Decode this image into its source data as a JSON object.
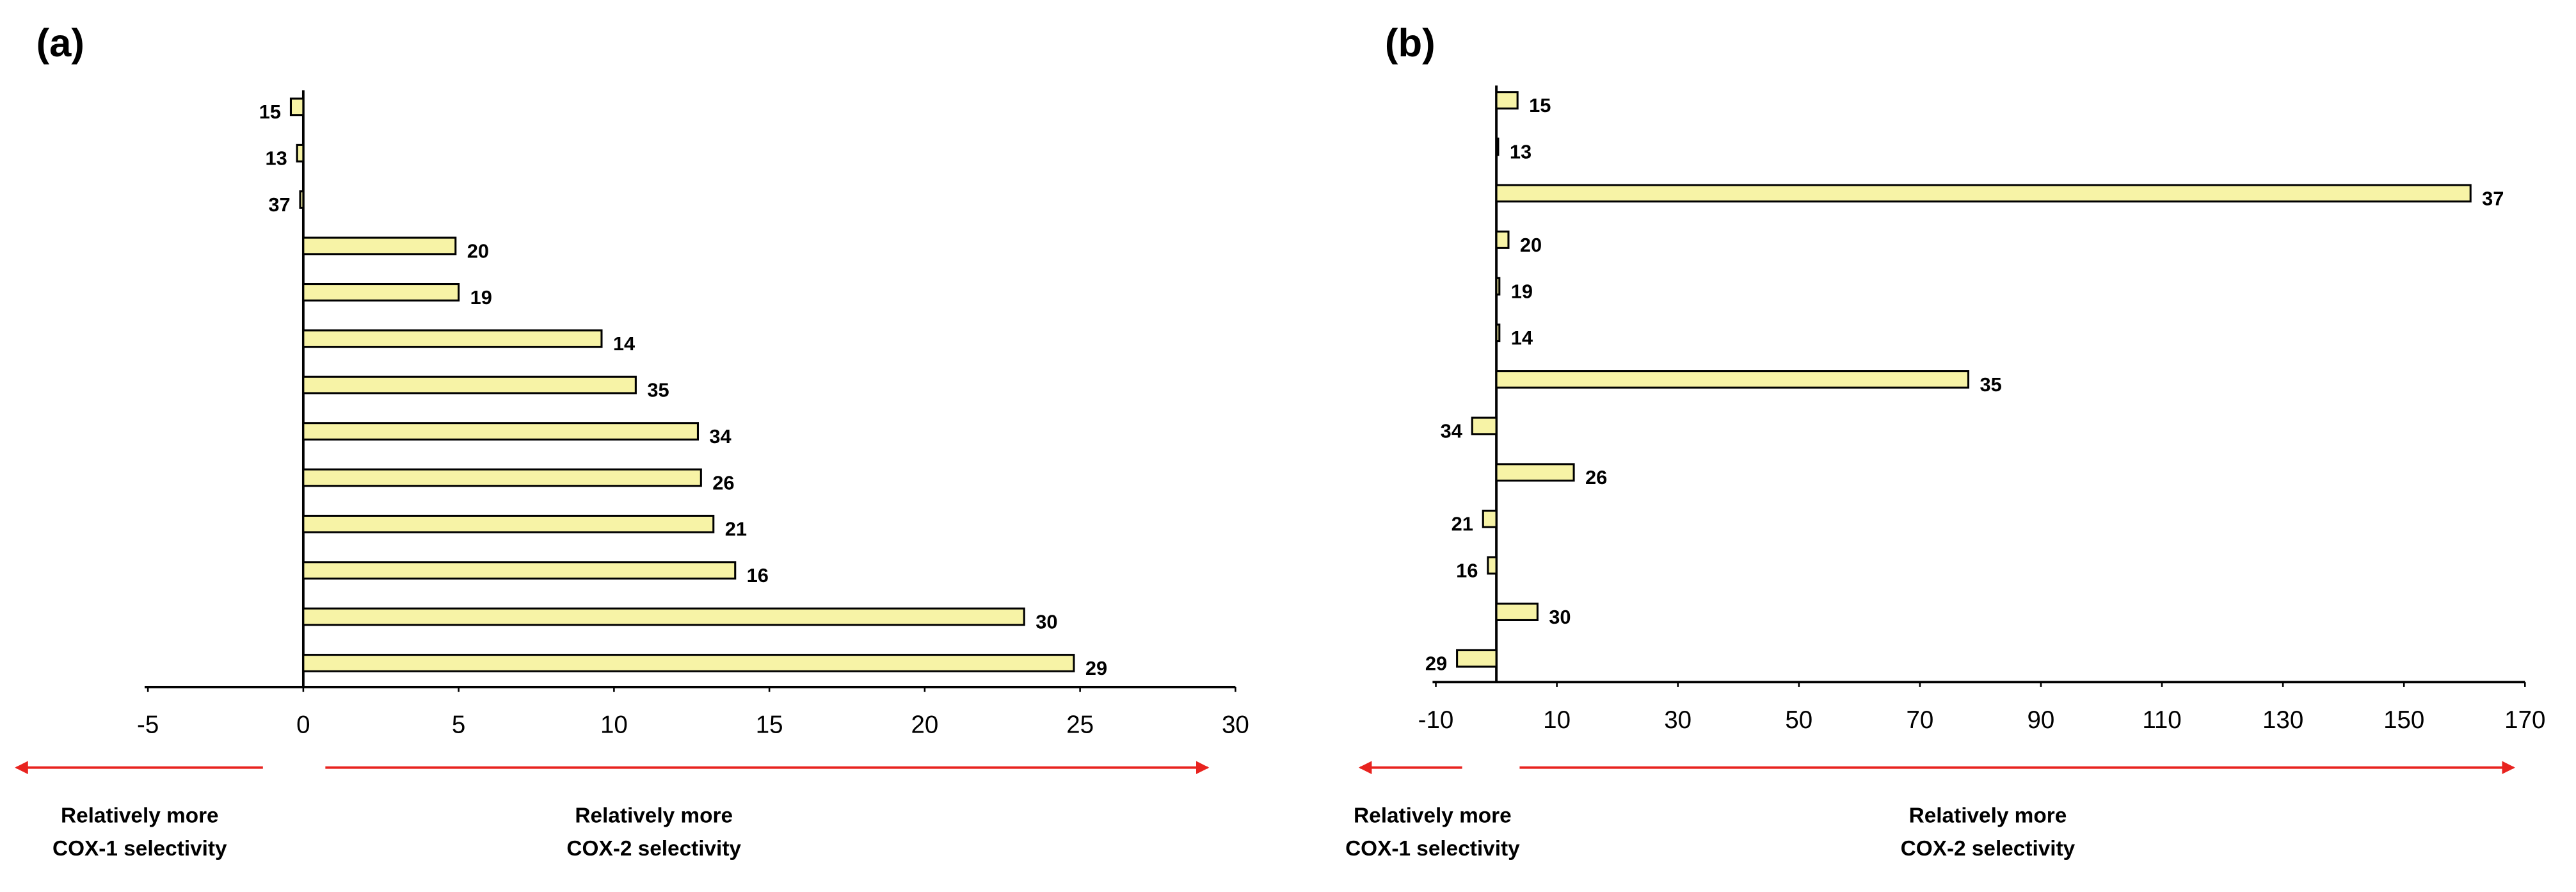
{
  "chart_data": [
    {
      "type": "bar",
      "panel_label": "(a)",
      "orientation": "horizontal",
      "color": "#f7f3a6",
      "categories": [
        "15",
        "13",
        "37",
        "20",
        "19",
        "14",
        "35",
        "34",
        "26",
        "21",
        "16",
        "30",
        "29"
      ],
      "values": [
        -0.4,
        -0.2,
        -0.1,
        4.9,
        5.0,
        9.6,
        10.7,
        12.7,
        12.8,
        13.2,
        13.9,
        23.2,
        24.8
      ],
      "xlim": [
        -5,
        30
      ],
      "xticks": [
        -5,
        0,
        5,
        10,
        15,
        20,
        25,
        30
      ],
      "grid": false,
      "annotations": [
        [
          "Relatively more",
          "COX-1 selectivity"
        ],
        [
          "Relatively more",
          "COX-2 selectivity"
        ]
      ]
    },
    {
      "type": "bar",
      "panel_label": "(b)",
      "orientation": "horizontal",
      "color": "#f7f3a6",
      "categories": [
        "15",
        "13",
        "37",
        "20",
        "19",
        "14",
        "35",
        "34",
        "26",
        "21",
        "16",
        "30",
        "29"
      ],
      "values": [
        3.5,
        0.3,
        161,
        2,
        0.5,
        0.5,
        78,
        -4,
        12.8,
        -2.2,
        -1.4,
        6.8,
        -6.5
      ],
      "xlim": [
        -10,
        170
      ],
      "xticks": [
        -10,
        10,
        30,
        50,
        70,
        90,
        110,
        130,
        150,
        170
      ],
      "grid": false,
      "annotations": [
        [
          "Relatively more",
          "COX-1 selectivity"
        ],
        [
          "Relatively more",
          "COX-2 selectivity"
        ]
      ]
    }
  ]
}
